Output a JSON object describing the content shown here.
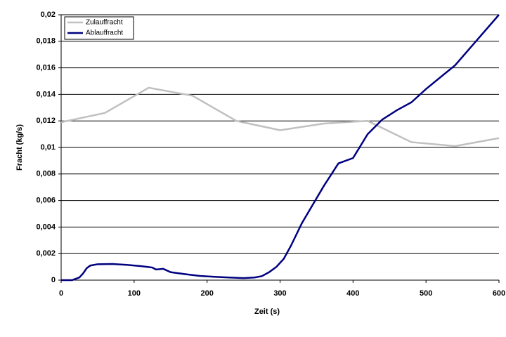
{
  "chart_data": {
    "type": "line",
    "xlabel": "Zeit (s)",
    "ylabel": "Fracht (kg/s)",
    "xlim": [
      0,
      600
    ],
    "xticks": [
      0,
      100,
      200,
      300,
      400,
      500,
      600
    ],
    "ylim": [
      0,
      0.02
    ],
    "yticks": [
      0,
      {
        "value": 0.002,
        "label": "0,002"
      },
      {
        "value": 0.004,
        "label": "0,004"
      },
      {
        "value": 0.006,
        "label": "0,006"
      },
      {
        "value": 0.008,
        "label": "0,008"
      },
      {
        "value": 0.01,
        "label": "0,01"
      },
      {
        "value": 0.012,
        "label": "0,012"
      },
      {
        "value": 0.014,
        "label": "0,014"
      },
      {
        "value": 0.016,
        "label": "0,016"
      },
      {
        "value": 0.018,
        "label": "0,018"
      },
      {
        "value": 0.02,
        "label": "0,02"
      }
    ],
    "grid": true,
    "legend": "top-left",
    "series": [
      {
        "name": "Zulauffracht",
        "color": "#c0c0c0",
        "x": [
          0,
          60,
          120,
          180,
          240,
          300,
          360,
          420,
          480,
          540,
          600
        ],
        "values": [
          0.0119,
          0.0126,
          0.0145,
          0.0139,
          0.012,
          0.0113,
          0.0118,
          0.012,
          0.0104,
          0.0101,
          0.0107
        ]
      },
      {
        "name": "Ablauffracht",
        "color": "#000080",
        "x": [
          0,
          15,
          25,
          30,
          35,
          40,
          50,
          70,
          90,
          110,
          125,
          130,
          140,
          150,
          170,
          190,
          210,
          230,
          250,
          265,
          275,
          285,
          295,
          305,
          315,
          330,
          345,
          360,
          380,
          400,
          420,
          440,
          460,
          480,
          500,
          540,
          570,
          600
        ],
        "values": [
          0,
          0,
          0.0002,
          0.0005,
          0.0009,
          0.0011,
          0.0012,
          0.00122,
          0.00115,
          0.00105,
          0.00095,
          0.0008,
          0.00085,
          0.0006,
          0.00045,
          0.00032,
          0.00025,
          0.0002,
          0.00015,
          0.0002,
          0.0003,
          0.0006,
          0.001,
          0.0016,
          0.0026,
          0.0043,
          0.0057,
          0.0071,
          0.0088,
          0.0092,
          0.011,
          0.0121,
          0.0128,
          0.0134,
          0.0144,
          0.0162,
          0.0181,
          0.02
        ]
      }
    ]
  }
}
